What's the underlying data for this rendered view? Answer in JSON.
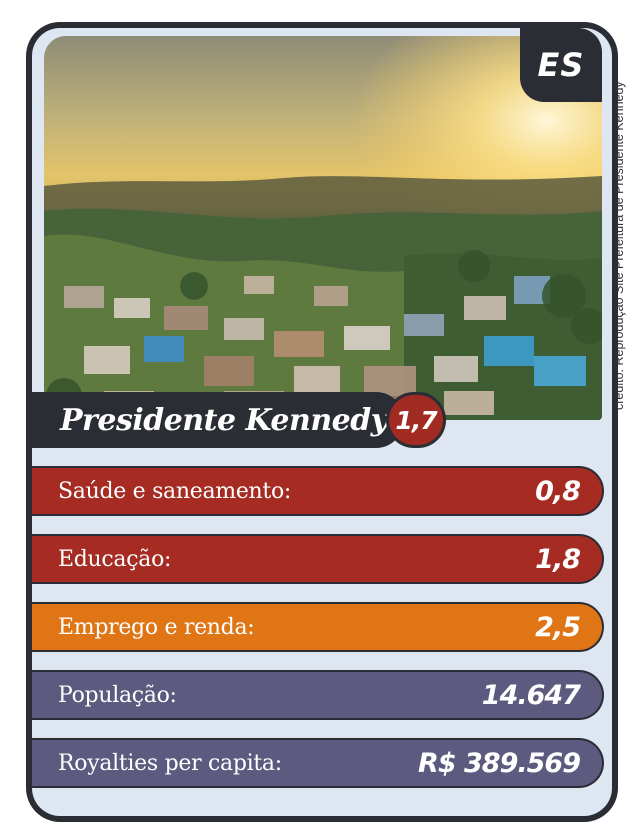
{
  "card": {
    "state": "ES",
    "credit": "crédito: Reprodução Site Prefeitura de Presidente Kennedy",
    "city": "Presidente Kennedy",
    "score": "1,7",
    "photo_icon": "city-landscape-photo"
  },
  "stats": [
    {
      "label": "Saúde e saneamento:",
      "value": "0,8",
      "color": "#a52b23"
    },
    {
      "label": "Educação:",
      "value": "1,8",
      "color": "#a52b23"
    },
    {
      "label": "Emprego e renda:",
      "value": "2,5",
      "color": "#df7514"
    },
    {
      "label": "População:",
      "value": "14.647",
      "color": "#5d5a80"
    },
    {
      "label": "Royalties per capita:",
      "value": "R$ 389.569",
      "color": "#5d5a80"
    }
  ],
  "colors": {
    "dark": "#2b2d35",
    "background": "#dde6f1"
  }
}
